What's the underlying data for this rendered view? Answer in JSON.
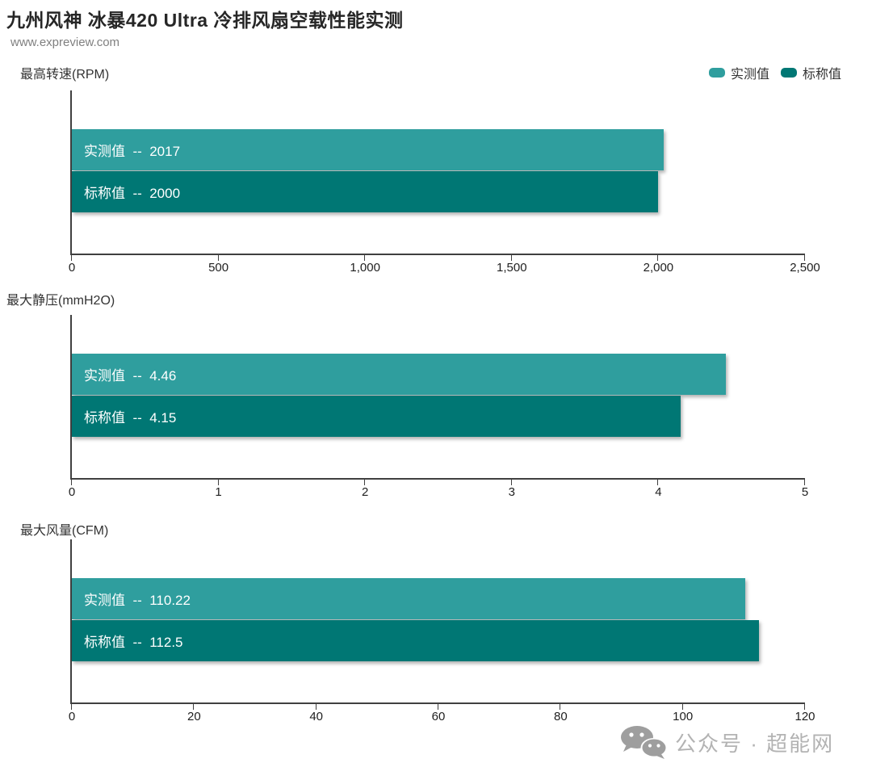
{
  "page": {
    "title": "九州风神 冰暴420 Ultra 冷排风扇空载性能实测",
    "subtitle": "www.expreview.com"
  },
  "legend": [
    {
      "label": "实测值",
      "color": "#2F9E9E"
    },
    {
      "label": "标称值",
      "color": "#007774"
    }
  ],
  "watermark": {
    "text": "公众号 · 超能网",
    "icon": "wechat-icon",
    "color": "#a6a6a6"
  },
  "colors": {
    "measured": "#2F9E9E",
    "rated": "#007774",
    "axis": "#404040"
  },
  "chart_data": [
    {
      "type": "bar",
      "orientation": "horizontal",
      "title": "最高转速(RPM)",
      "categories": [
        "实测值",
        "标称值"
      ],
      "values": [
        2017,
        2000
      ],
      "bar_labels": [
        "实测值  --  2017",
        "标称值  --  2000"
      ],
      "colors": [
        "#2F9E9E",
        "#007774"
      ],
      "xlim": [
        0,
        2500
      ],
      "ticks": [
        0,
        500,
        1000,
        1500,
        2000,
        2500
      ],
      "tick_labels": [
        "0",
        "500",
        "1,000",
        "1,500",
        "2,000",
        "2,500"
      ],
      "grid": false,
      "legend_position": "top-right"
    },
    {
      "type": "bar",
      "orientation": "horizontal",
      "title": "最大静压(mmH2O)",
      "categories": [
        "实测值",
        "标称值"
      ],
      "values": [
        4.46,
        4.15
      ],
      "bar_labels": [
        "实测值  --  4.46",
        "标称值  --  4.15"
      ],
      "colors": [
        "#2F9E9E",
        "#007774"
      ],
      "xlim": [
        0,
        5
      ],
      "ticks": [
        0,
        1,
        2,
        3,
        4,
        5
      ],
      "tick_labels": [
        "0",
        "1",
        "2",
        "3",
        "4",
        "5"
      ],
      "grid": false
    },
    {
      "type": "bar",
      "orientation": "horizontal",
      "title": "最大风量(CFM)",
      "categories": [
        "实测值",
        "标称值"
      ],
      "values": [
        110.22,
        112.5
      ],
      "bar_labels": [
        "实测值  --  110.22",
        "标称值  --  112.5"
      ],
      "colors": [
        "#2F9E9E",
        "#007774"
      ],
      "xlim": [
        0,
        120
      ],
      "ticks": [
        0,
        20,
        40,
        60,
        80,
        100,
        120
      ],
      "tick_labels": [
        "0",
        "20",
        "40",
        "60",
        "80",
        "100",
        "120"
      ],
      "grid": false
    }
  ]
}
